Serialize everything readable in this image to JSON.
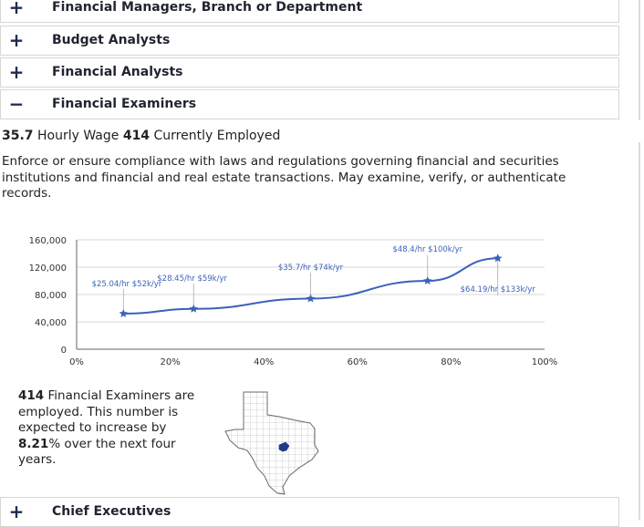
{
  "accordion_top": [
    {
      "sign": "+",
      "label": "Financial Managers, Branch or Department"
    },
    {
      "sign": "+",
      "label": "Budget Analysts"
    },
    {
      "sign": "+",
      "label": "Financial Analysts"
    },
    {
      "sign": "−",
      "label": "Financial Examiners"
    }
  ],
  "occupation": {
    "hourly_wage": "35.7",
    "hourly_wage_label": "Hourly Wage",
    "employed": "414",
    "employed_label": "Currently Employed",
    "description": "Enforce or ensure compliance with laws and regulations governing financial and securities institutions and financial and real estate transactions. May examine, verify, or authenticate records.",
    "employment_note": {
      "count": "414",
      "text_1": "Financial Examiners are employed. This number is expected to increase by",
      "growth": "8.21",
      "text_2": "% over the next four years."
    }
  },
  "chart_data": {
    "type": "line",
    "x": [
      10,
      25,
      50,
      75,
      90
    ],
    "values": [
      52000,
      59000,
      74000,
      100000,
      133000
    ],
    "point_labels": [
      "$25.04/hr $52k/yr",
      "$28.45/hr $59k/yr",
      "$35.7/hr $74k/yr",
      "$48.4/hr $100k/yr",
      "$64.19/hr $133k/yr"
    ],
    "y_ticks": [
      "0",
      "40,000",
      "80,000",
      "120,000",
      "160,000"
    ],
    "x_ticks": [
      "0%",
      "20%",
      "40%",
      "60%",
      "80%",
      "100%"
    ],
    "ylim": [
      0,
      160000
    ],
    "xlim": [
      0,
      100
    ],
    "grid": true,
    "color": "#3a62b8"
  },
  "accordion_bottom": [
    {
      "sign": "+",
      "label": "Chief Executives"
    }
  ],
  "map": {
    "state": "Texas",
    "highlight_color": "#1f3a8a"
  }
}
